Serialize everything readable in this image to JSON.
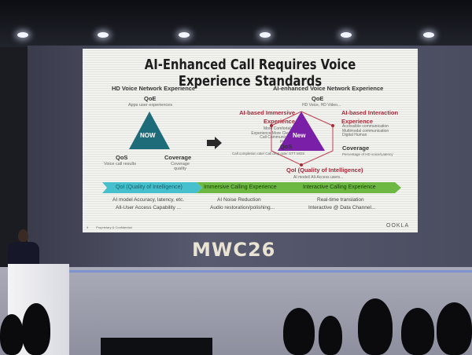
{
  "slide": {
    "title": "AI-Enhanced Call Requires Voice Experience Standards",
    "left": {
      "heading": "HD Voice Network Experience",
      "qoe": "QoE",
      "qoe_sub": "Apps user experiences",
      "center": "NOW",
      "qos": "QoS",
      "qos_sub": "Voice call results",
      "coverage": "Coverage",
      "coverage_sub": "Coverage quality"
    },
    "right": {
      "heading": "AI-enhanced Voice Network Experience",
      "qoe": "QoE",
      "qoe_sub": "HD Voice, HD Video...",
      "immersive": "AI-based Immersive Experience",
      "immersive_sub": "More Comfortable Experience More Clearer Call Communication Possible",
      "interaction": "AI-based Interaction Experience",
      "interaction_sub": "Accessible communication Multimodal communication Digital Human",
      "center": "New",
      "qos": "QoS",
      "qos_sub": "Call completion rate/ Call drop rate/ OTT MOS",
      "coverage": "Coverage",
      "coverage_sub": "Percentage of HD voice/Latency",
      "qoi": "QoI (Quality of Intelligence)",
      "qoi_sub": "AI model/ All-Access users..."
    },
    "band": [
      {
        "label": "QoI (Quality of Intelligence)",
        "line1": "AI model Accuracy, latency, etc.",
        "line2": "All-User Access Capability ..."
      },
      {
        "label": "Immersive Calling Experience",
        "line1": "AI Noise Reduction",
        "line2": "Audio restoration/polishing..."
      },
      {
        "label": "Interactive Calling Experience",
        "line1": "Real-time translation",
        "line2": "Interactive @ Data Channel..."
      }
    ],
    "page_number": "9",
    "footer": "Proprietary & Confidential",
    "logo": "OOKLA"
  },
  "event_logo": "MWC26",
  "colors": {
    "teal": "#1e6b7a",
    "purple": "#7a1fa8",
    "band_teal": "#46c0cc",
    "band_green": "#6cb842",
    "accent_red": "#a52a3a"
  }
}
